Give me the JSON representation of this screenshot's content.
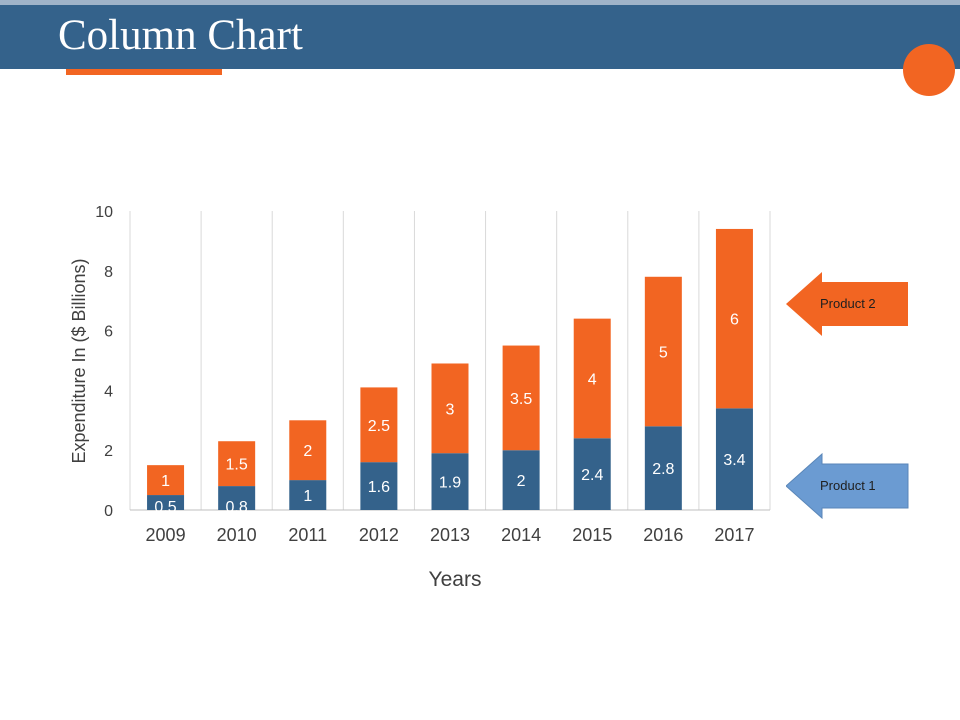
{
  "header": {
    "title": "Column Chart"
  },
  "colors": {
    "header": "#34628b",
    "product1": "#34628b",
    "product2": "#f26522",
    "product1_arrow": "#6b9bd2",
    "accent": "#f26522"
  },
  "legend": {
    "product2_label": "Product 2",
    "product1_label": "Product 1"
  },
  "chart_data": {
    "type": "bar",
    "stacked": true,
    "categories": [
      "2009",
      "2010",
      "2011",
      "2012",
      "2013",
      "2014",
      "2015",
      "2016",
      "2017"
    ],
    "series": [
      {
        "name": "Product 1",
        "values": [
          0.5,
          0.8,
          1,
          1.6,
          1.9,
          2,
          2.4,
          2.8,
          3.4
        ]
      },
      {
        "name": "Product 2",
        "values": [
          1,
          1.5,
          2,
          2.5,
          3,
          3.5,
          4,
          5,
          6
        ]
      }
    ],
    "xlabel": "Years",
    "ylabel": "Expenditure In ($ Billions)",
    "ylim": [
      0,
      10
    ],
    "yticks": [
      0,
      2,
      4,
      6,
      8,
      10
    ],
    "grid": "vertical"
  }
}
